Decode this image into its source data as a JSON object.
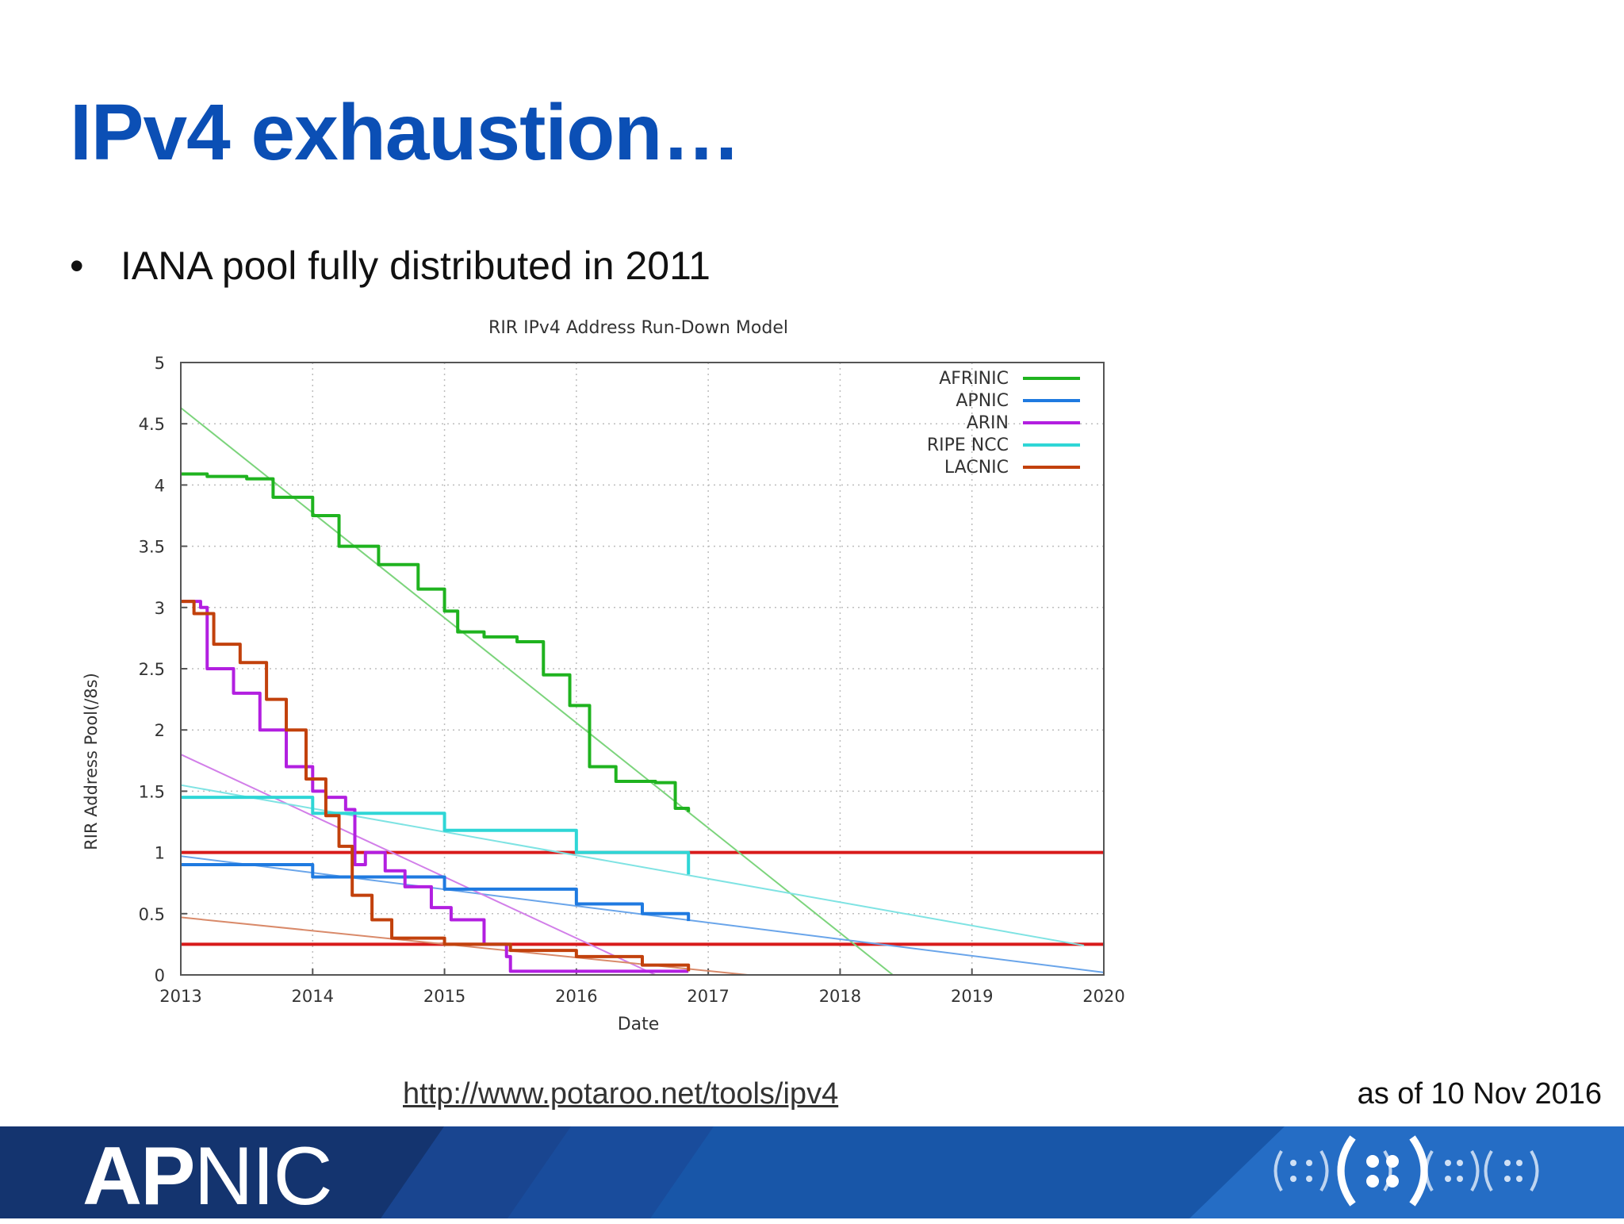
{
  "slide": {
    "title": "IPv4 exhaustion…",
    "bullet": "IANA pool fully distributed in 2011",
    "source_link": "http://www.potaroo.net/tools/ipv4",
    "as_of": "as of 10 Nov 2016"
  },
  "footer": {
    "logo_bold": "AP",
    "logo_thin": "NIC",
    "bar_color": "#1856a8",
    "bar_dark": "#14346f"
  },
  "chart_data": {
    "type": "line",
    "title": "RIR IPv4 Address Run-Down Model",
    "xlabel": "Date",
    "ylabel": "RIR Address Pool(/8s)",
    "xlim": [
      2013,
      2020
    ],
    "ylim": [
      0,
      5
    ],
    "xticks": [
      "2013",
      "2014",
      "2015",
      "2016",
      "2017",
      "2018",
      "2019",
      "2020"
    ],
    "yticks": [
      "0",
      "0.5",
      "1",
      "1.5",
      "2",
      "2.5",
      "3",
      "3.5",
      "4",
      "4.5",
      "5"
    ],
    "grid": true,
    "legend_position": "top-right",
    "series": [
      {
        "name": "AFRINIC",
        "color": "#1fb31f",
        "x": [
          2013.0,
          2013.2,
          2013.5,
          2013.7,
          2014.0,
          2014.2,
          2014.5,
          2014.8,
          2015.0,
          2015.1,
          2015.3,
          2015.55,
          2015.75,
          2015.95,
          2016.1,
          2016.3,
          2016.6,
          2016.65,
          2016.75,
          2016.85
        ],
        "y": [
          4.09,
          4.07,
          4.05,
          3.9,
          3.75,
          3.5,
          3.35,
          3.15,
          2.97,
          2.8,
          2.76,
          2.72,
          2.45,
          2.2,
          1.7,
          1.58,
          1.57,
          1.57,
          1.36,
          1.33
        ]
      },
      {
        "name": "APNIC",
        "color": "#1f7ae0",
        "x": [
          2013.0,
          2014.0,
          2015.0,
          2016.0,
          2016.5,
          2016.85
        ],
        "y": [
          0.9,
          0.8,
          0.7,
          0.58,
          0.5,
          0.44
        ]
      },
      {
        "name": "ARIN",
        "color": "#b21fe0",
        "x": [
          2013.0,
          2013.15,
          2013.2,
          2013.4,
          2013.6,
          2013.8,
          2014.0,
          2014.1,
          2014.25,
          2014.32,
          2014.4,
          2014.55,
          2014.7,
          2014.9,
          2015.05,
          2015.3,
          2015.47,
          2015.5,
          2016.0,
          2016.5,
          2016.85
        ],
        "y": [
          3.05,
          3.0,
          2.5,
          2.3,
          2.0,
          1.7,
          1.5,
          1.45,
          1.35,
          0.9,
          1.0,
          0.85,
          0.72,
          0.55,
          0.45,
          0.25,
          0.15,
          0.03,
          0.03,
          0.03,
          0.03
        ]
      },
      {
        "name": "RIPE NCC",
        "color": "#2fd6d6",
        "x": [
          2013.0,
          2014.0,
          2015.0,
          2016.0,
          2016.85
        ],
        "y": [
          1.45,
          1.32,
          1.18,
          1.0,
          0.82
        ]
      },
      {
        "name": "LACNIC",
        "color": "#c2410c",
        "x": [
          2013.0,
          2013.1,
          2013.25,
          2013.45,
          2013.65,
          2013.8,
          2013.95,
          2014.1,
          2014.2,
          2014.3,
          2014.45,
          2014.6,
          2015.0,
          2015.5,
          2016.0,
          2016.5,
          2016.85
        ],
        "y": [
          3.05,
          2.95,
          2.7,
          2.55,
          2.25,
          2.0,
          1.6,
          1.3,
          1.05,
          0.65,
          0.45,
          0.3,
          0.25,
          0.2,
          0.15,
          0.08,
          0.03
        ]
      }
    ],
    "projections": [
      {
        "series": "AFRINIC",
        "color": "#7cd47c",
        "x": [
          2013.0,
          2018.4
        ],
        "y": [
          4.63,
          0.0
        ]
      },
      {
        "series": "APNIC",
        "color": "#6aa5ea",
        "x": [
          2013.0,
          2020.0
        ],
        "y": [
          0.97,
          0.02
        ]
      },
      {
        "series": "ARIN",
        "color": "#d27fe9",
        "x": [
          2013.0,
          2016.6
        ],
        "y": [
          1.8,
          0.0
        ]
      },
      {
        "series": "RIPE NCC",
        "color": "#7fe3e3",
        "x": [
          2013.0,
          2019.85
        ],
        "y": [
          1.55,
          0.24
        ]
      },
      {
        "series": "LACNIC",
        "color": "#d98a6a",
        "x": [
          2013.0,
          2017.3
        ],
        "y": [
          0.47,
          0.0
        ]
      }
    ],
    "reference_lines": [
      {
        "y": 1.0,
        "color": "#d81b1b"
      },
      {
        "y": 0.25,
        "color": "#d81b1b"
      }
    ]
  }
}
